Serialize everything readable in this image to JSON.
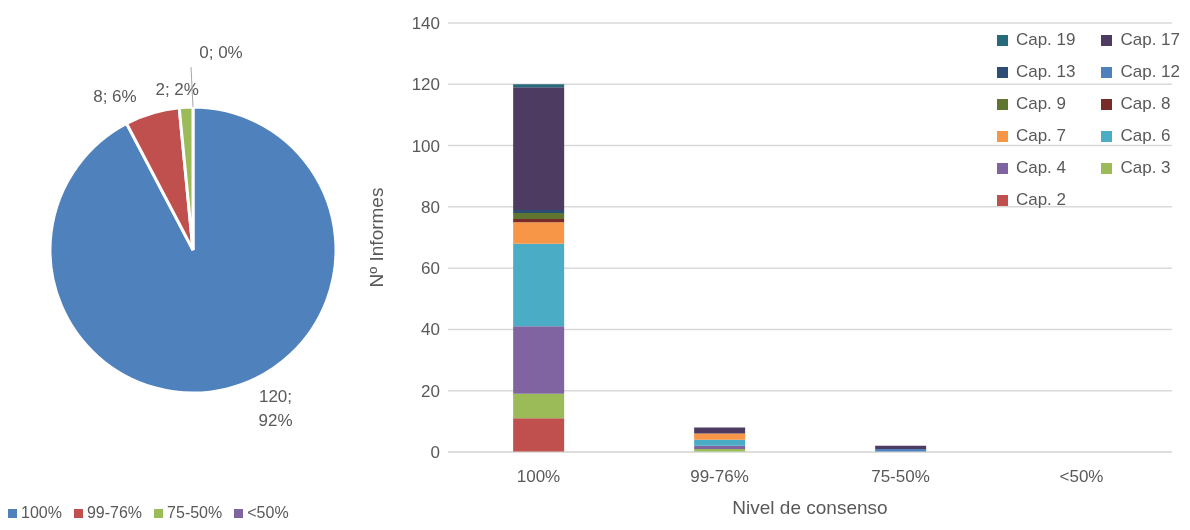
{
  "chart_data": [
    {
      "type": "pie",
      "categories": [
        "100%",
        "99-76%",
        "75-50%",
        "<50%"
      ],
      "values": [
        120,
        8,
        2,
        0
      ],
      "colors": [
        "#4f81bd",
        "#c0504d",
        "#9bbb59",
        "#8064a2"
      ],
      "value_labels": [
        "120; 92%",
        "8; 6%",
        "2; 2%",
        "0; 0%"
      ],
      "legend": "bottom"
    },
    {
      "type": "bar",
      "stacked": true,
      "categories": [
        "100%",
        "99-76%",
        "75-50%",
        "<50%"
      ],
      "xlabel": "Nivel de consenso",
      "ylabel": "Nº Informes",
      "ylim": [
        0,
        140
      ],
      "yticks": [
        0,
        20,
        40,
        60,
        80,
        100,
        120,
        140
      ],
      "grid": "y",
      "legend": "top right",
      "series": [
        {
          "name": "Cap. 2",
          "color": "#c0504d",
          "values": [
            11,
            0,
            0,
            0
          ]
        },
        {
          "name": "Cap. 3",
          "color": "#9bbb59",
          "values": [
            8,
            1,
            0,
            0
          ]
        },
        {
          "name": "Cap. 4",
          "color": "#8064a2",
          "values": [
            22,
            1,
            0,
            0
          ]
        },
        {
          "name": "Cap. 6",
          "color": "#4bacc6",
          "values": [
            27,
            2,
            0,
            0
          ]
        },
        {
          "name": "Cap. 7",
          "color": "#f79646",
          "values": [
            7,
            2,
            0,
            0
          ]
        },
        {
          "name": "Cap. 8",
          "color": "#772c2a",
          "values": [
            1,
            0,
            0,
            0
          ]
        },
        {
          "name": "Cap. 9",
          "color": "#5f7530",
          "values": [
            2,
            0,
            0,
            0
          ]
        },
        {
          "name": "Cap. 12",
          "color": "#4f81bd",
          "values": [
            0,
            0,
            1,
            0
          ]
        },
        {
          "name": "Cap. 13",
          "color": "#2c4d75",
          "values": [
            1,
            0,
            0,
            0
          ]
        },
        {
          "name": "Cap. 17",
          "color": "#4d3b62",
          "values": [
            40,
            2,
            1,
            0
          ]
        },
        {
          "name": "Cap. 19",
          "color": "#276a7c",
          "values": [
            1,
            0,
            0,
            0
          ]
        }
      ]
    }
  ]
}
